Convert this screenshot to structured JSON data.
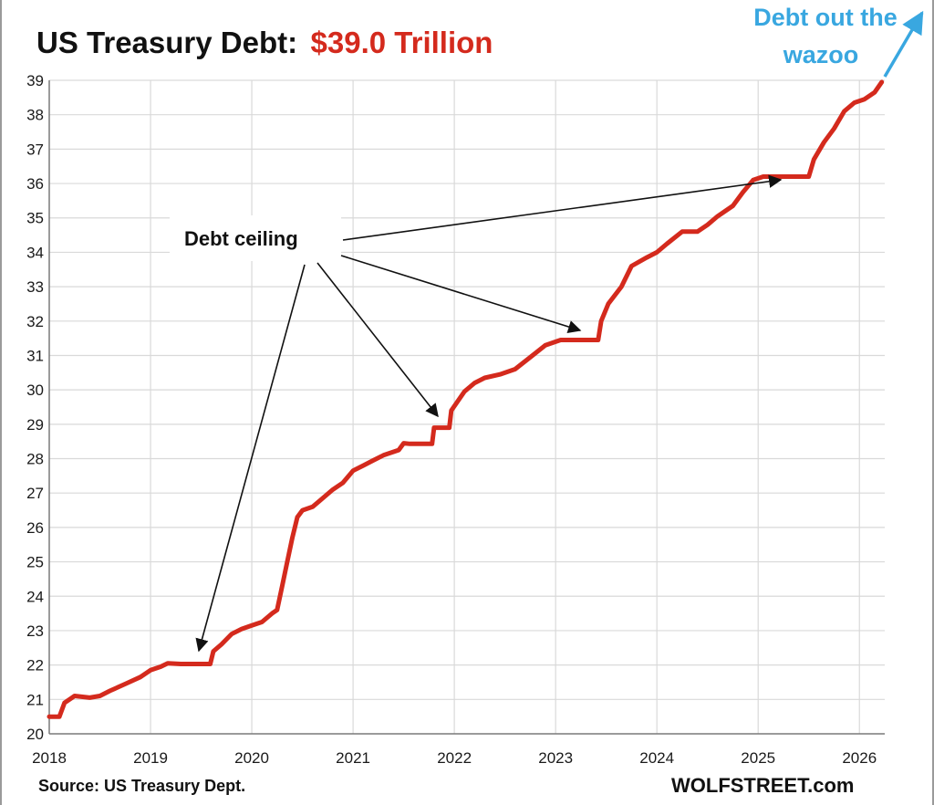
{
  "chart_data": {
    "type": "line",
    "title": "US Treasury Debt:",
    "title_value": "$39.0 Trillion",
    "xlabel": "",
    "ylabel": "",
    "x_ticks": [
      "2018",
      "2019",
      "2020",
      "2021",
      "2022",
      "2023",
      "2024",
      "2025",
      "2026"
    ],
    "y_ticks": [
      "20",
      "21",
      "22",
      "23",
      "24",
      "25",
      "26",
      "27",
      "28",
      "29",
      "30",
      "31",
      "32",
      "33",
      "34",
      "35",
      "36",
      "37",
      "38",
      "39"
    ],
    "xlim": [
      2018.0,
      2026.25
    ],
    "ylim": [
      20,
      39
    ],
    "grid": true,
    "series": [
      {
        "color": "#d42a1d",
        "points": [
          [
            2018.0,
            20.5
          ],
          [
            2018.1,
            20.5
          ],
          [
            2018.15,
            20.9
          ],
          [
            2018.25,
            21.1
          ],
          [
            2018.4,
            21.05
          ],
          [
            2018.5,
            21.1
          ],
          [
            2018.6,
            21.25
          ],
          [
            2018.75,
            21.45
          ],
          [
            2018.9,
            21.65
          ],
          [
            2019.0,
            21.85
          ],
          [
            2019.1,
            21.95
          ],
          [
            2019.17,
            22.05
          ],
          [
            2019.3,
            22.03
          ],
          [
            2019.59,
            22.03
          ],
          [
            2019.62,
            22.4
          ],
          [
            2019.7,
            22.6
          ],
          [
            2019.8,
            22.9
          ],
          [
            2019.9,
            23.05
          ],
          [
            2020.0,
            23.15
          ],
          [
            2020.1,
            23.25
          ],
          [
            2020.2,
            23.5
          ],
          [
            2020.25,
            23.6
          ],
          [
            2020.3,
            24.3
          ],
          [
            2020.35,
            25.0
          ],
          [
            2020.4,
            25.7
          ],
          [
            2020.45,
            26.3
          ],
          [
            2020.5,
            26.5
          ],
          [
            2020.6,
            26.6
          ],
          [
            2020.7,
            26.85
          ],
          [
            2020.8,
            27.1
          ],
          [
            2020.9,
            27.3
          ],
          [
            2021.0,
            27.65
          ],
          [
            2021.1,
            27.8
          ],
          [
            2021.2,
            27.95
          ],
          [
            2021.3,
            28.1
          ],
          [
            2021.45,
            28.25
          ],
          [
            2021.5,
            28.45
          ],
          [
            2021.56,
            28.43
          ],
          [
            2021.78,
            28.43
          ],
          [
            2021.8,
            28.9
          ],
          [
            2021.95,
            28.9
          ],
          [
            2021.97,
            29.4
          ],
          [
            2022.1,
            29.95
          ],
          [
            2022.2,
            30.2
          ],
          [
            2022.3,
            30.35
          ],
          [
            2022.45,
            30.45
          ],
          [
            2022.6,
            30.6
          ],
          [
            2022.75,
            30.95
          ],
          [
            2022.9,
            31.3
          ],
          [
            2023.0,
            31.4
          ],
          [
            2023.05,
            31.45
          ],
          [
            2023.42,
            31.45
          ],
          [
            2023.45,
            32.0
          ],
          [
            2023.52,
            32.5
          ],
          [
            2023.65,
            33.0
          ],
          [
            2023.75,
            33.6
          ],
          [
            2023.9,
            33.85
          ],
          [
            2024.0,
            34.0
          ],
          [
            2024.1,
            34.25
          ],
          [
            2024.25,
            34.6
          ],
          [
            2024.4,
            34.6
          ],
          [
            2024.5,
            34.8
          ],
          [
            2024.6,
            35.05
          ],
          [
            2024.75,
            35.35
          ],
          [
            2024.85,
            35.75
          ],
          [
            2024.95,
            36.1
          ],
          [
            2025.05,
            36.2
          ],
          [
            2025.5,
            36.2
          ],
          [
            2025.55,
            36.7
          ],
          [
            2025.65,
            37.2
          ],
          [
            2025.75,
            37.6
          ],
          [
            2025.85,
            38.1
          ],
          [
            2025.95,
            38.35
          ],
          [
            2026.05,
            38.45
          ],
          [
            2026.15,
            38.65
          ],
          [
            2026.22,
            38.95
          ]
        ]
      }
    ],
    "annotations": {
      "debt_ceiling": "Debt ceiling",
      "wazoo_line1": "Debt out the",
      "wazoo_line2": "wazoo"
    }
  },
  "footer": {
    "source": "Source: US Treasury Dept.",
    "brand": "WOLFSTREET.com"
  },
  "colors": {
    "line": "#d42a1d",
    "annotation_blue": "#39a7e0",
    "grid": "#d9d9d9"
  }
}
